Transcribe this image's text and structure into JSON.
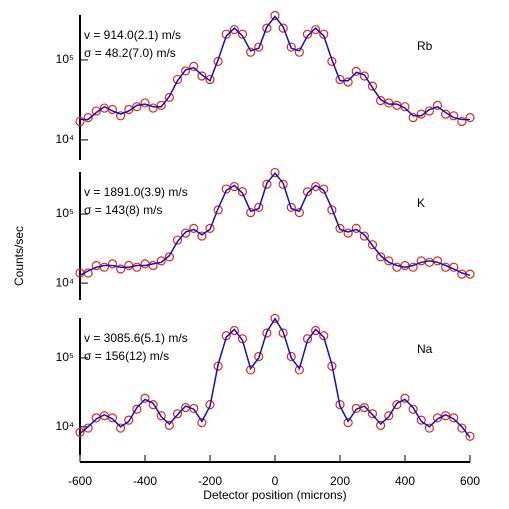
{
  "chart_data": [
    {
      "type": "line",
      "title": "Rb",
      "annotations": [
        "v = 914.0(2.1) m/s",
        "σ = 48.2(7.0) m/s"
      ],
      "log_y": true,
      "x": [
        -600,
        -575,
        -550,
        -525,
        -500,
        -475,
        -450,
        -425,
        -400,
        -375,
        -350,
        -325,
        -300,
        -275,
        -250,
        -225,
        -200,
        -175,
        -150,
        -125,
        -100,
        -75,
        -50,
        -25,
        0,
        25,
        50,
        75,
        100,
        125,
        150,
        175,
        200,
        225,
        250,
        275,
        300,
        325,
        350,
        375,
        400,
        425,
        450,
        475,
        500,
        525,
        550,
        575,
        600
      ],
      "xlim": [
        -600,
        600
      ],
      "ylim": [
        5600,
        365000
      ],
      "yticks": [
        {
          "value": 10000,
          "label": "10⁴"
        },
        {
          "value": 100000,
          "label": "10⁵"
        }
      ],
      "series": [
        {
          "color": "#e02818",
          "marker": "circle",
          "values": [
            17000.0,
            19000.0,
            23000.0,
            25000.0,
            24000.0,
            20000.0,
            24000.0,
            26000.0,
            29000.0,
            25000.0,
            27000.0,
            34000.0,
            57000.0,
            73000.0,
            83000.0,
            63000.0,
            57000.0,
            96000.0,
            210000.0,
            240000.0,
            210000.0,
            125000.0,
            145000.0,
            250000.0,
            360000.0,
            250000.0,
            145000.0,
            125000.0,
            210000.0,
            240000.0,
            210000.0,
            96000.0,
            57000.0,
            53000.0,
            72000.0,
            63000.0,
            47000.0,
            31000.0,
            29000.0,
            27000.0,
            26000.0,
            19000.0,
            21000.0,
            23000.0,
            27000.0,
            21000.0,
            20000.0,
            17000.0,
            19000.0
          ]
        },
        {
          "color": "#1010c8",
          "marker": "none",
          "values": [
            18000.0,
            18000.0,
            22000.0,
            26000.0,
            23000.0,
            21000.0,
            23000.0,
            27000.0,
            28000.0,
            26000.0,
            26000.0,
            35000.0,
            55000.0,
            75000.0,
            80000.0,
            65000.0,
            55000.0,
            100000.0,
            200000.0,
            250000.0,
            200000.0,
            130000.0,
            140000.0,
            260000.0,
            350000.0,
            260000.0,
            140000.0,
            130000.0,
            200000.0,
            250000.0,
            200000.0,
            100000.0,
            55000.0,
            55000.0,
            70000.0,
            65000.0,
            45000.0,
            32000.0,
            28000.0,
            28000.0,
            25000.0,
            20000.0,
            20000.0,
            24000.0,
            26000.0,
            22000.0,
            19000.0,
            18000.0,
            18000.0
          ]
        }
      ]
    },
    {
      "type": "line",
      "title": "K",
      "annotations": [
        "v = 1891.0(3.9) m/s",
        "σ = 143(8) m/s"
      ],
      "log_y": true,
      "ylabel": "Counts/sec",
      "x": [
        -600,
        -575,
        -550,
        -525,
        -500,
        -475,
        -450,
        -425,
        -400,
        -375,
        -350,
        -325,
        -300,
        -275,
        -250,
        -225,
        -200,
        -175,
        -150,
        -125,
        -100,
        -75,
        -50,
        -25,
        0,
        25,
        50,
        75,
        100,
        125,
        150,
        175,
        200,
        225,
        250,
        275,
        300,
        325,
        350,
        375,
        400,
        425,
        450,
        475,
        500,
        525,
        550,
        575,
        600
      ],
      "xlim": [
        -600,
        600
      ],
      "ylim": [
        5700,
        406000
      ],
      "yticks": [
        {
          "value": 10000,
          "label": "10⁴"
        },
        {
          "value": 100000,
          "label": "10⁵"
        }
      ],
      "series": [
        {
          "color": "#e02818",
          "marker": "circle",
          "values": [
            14000.0,
            14000.0,
            18000.0,
            17000.0,
            19000.0,
            16000.0,
            18000.0,
            17000.0,
            19000.0,
            18000.0,
            21000.0,
            24000.0,
            42000.0,
            53000.0,
            62000.0,
            48000.0,
            62000.0,
            115000.0,
            230000.0,
            250000.0,
            210000.0,
            105000.0,
            125000.0,
            270000.0,
            400000.0,
            270000.0,
            125000.0,
            105000.0,
            210000.0,
            250000.0,
            230000.0,
            115000.0,
            62000.0,
            53000.0,
            62000.0,
            48000.0,
            36000.0,
            24000.0,
            21000.0,
            17000.0,
            18000.0,
            17000.0,
            21000.0,
            20000.0,
            21000.0,
            17000.0,
            17000.0,
            13500.0,
            13500.0
          ]
        },
        {
          "color": "#1010c8",
          "marker": "none",
          "values": [
            13000.0,
            15000.0,
            17000.0,
            18000.0,
            18000.0,
            17000.0,
            17000.0,
            18000.0,
            18000.0,
            19000.0,
            20000.0,
            25000.0,
            40000.0,
            55000.0,
            60000.0,
            50000.0,
            60000.0,
            120000.0,
            220000.0,
            260000.0,
            200000.0,
            110000.0,
            120000.0,
            280000.0,
            390000.0,
            280000.0,
            120000.0,
            110000.0,
            200000.0,
            260000.0,
            220000.0,
            120000.0,
            60000.0,
            55000.0,
            60000.0,
            50000.0,
            35000.0,
            25000.0,
            20000.0,
            18000.0,
            17000.0,
            18000.0,
            20000.0,
            21000.0,
            20000.0,
            18000.0,
            16000.0,
            14000.0,
            13000.0
          ]
        }
      ]
    },
    {
      "type": "line",
      "title": "Na",
      "annotations": [
        "v = 3085.6(5.1) m/s",
        "σ = 156(12) m/s"
      ],
      "log_y": true,
      "xlabel": "Detector position (microns)",
      "x": [
        -600,
        -575,
        -550,
        -525,
        -500,
        -475,
        -450,
        -425,
        -400,
        -375,
        -350,
        -325,
        -300,
        -275,
        -250,
        -225,
        -200,
        -175,
        -150,
        -125,
        -100,
        -75,
        -50,
        -25,
        0,
        25,
        50,
        75,
        100,
        125,
        150,
        175,
        200,
        225,
        250,
        275,
        300,
        325,
        350,
        375,
        400,
        425,
        450,
        475,
        500,
        525,
        550,
        575,
        600
      ],
      "xlim": [
        -600,
        600
      ],
      "xticks": [
        -600,
        -400,
        -200,
        0,
        200,
        400,
        600
      ],
      "ylim": [
        3900,
        380000
      ],
      "yticks": [
        {
          "value": 10000,
          "label": "10⁴"
        },
        {
          "value": 100000,
          "label": "10⁵"
        }
      ],
      "series": [
        {
          "color": "#e02818",
          "marker": "circle",
          "values": [
            8300.0,
            9600.0,
            13500.0,
            14500.0,
            13500.0,
            9600.0,
            12500.0,
            18000.0,
            26000.0,
            21000.0,
            14500.0,
            10500.0,
            15500.0,
            19000.0,
            18500.0,
            11500.0,
            21000.0,
            76000.0,
            210000.0,
            250000.0,
            190000.0,
            67000.0,
            105000.0,
            230000.0,
            375000.0,
            230000.0,
            105000.0,
            67000.0,
            190000.0,
            250000.0,
            210000.0,
            76000.0,
            21000.0,
            11500.0,
            18500.0,
            19000.0,
            15500.0,
            10500.0,
            14500.0,
            21000.0,
            26000.0,
            18000.0,
            12500.0,
            9600.0,
            13500.0,
            14500.0,
            13500.0,
            9600.0,
            7300.0
          ]
        },
        {
          "color": "#1010c8",
          "marker": "none",
          "values": [
            8000.0,
            10000.0,
            13000.0,
            15000.0,
            13000.0,
            10000.0,
            12000.0,
            19000.0,
            25000.0,
            22000.0,
            14000.0,
            11000.0,
            15000.0,
            20000.0,
            18000.0,
            12000.0,
            20000.0,
            80000.0,
            200000.0,
            260000.0,
            180000.0,
            70000.0,
            100000.0,
            240000.0,
            370000.0,
            240000.0,
            100000.0,
            70000.0,
            180000.0,
            260000.0,
            200000.0,
            80000.0,
            20000.0,
            12000.0,
            18000.0,
            20000.0,
            15000.0,
            11000.0,
            14000.0,
            22000.0,
            25000.0,
            19000.0,
            12000.0,
            10000.0,
            13000.0,
            15000.0,
            13000.0,
            10000.0,
            7000.0
          ]
        }
      ]
    }
  ]
}
